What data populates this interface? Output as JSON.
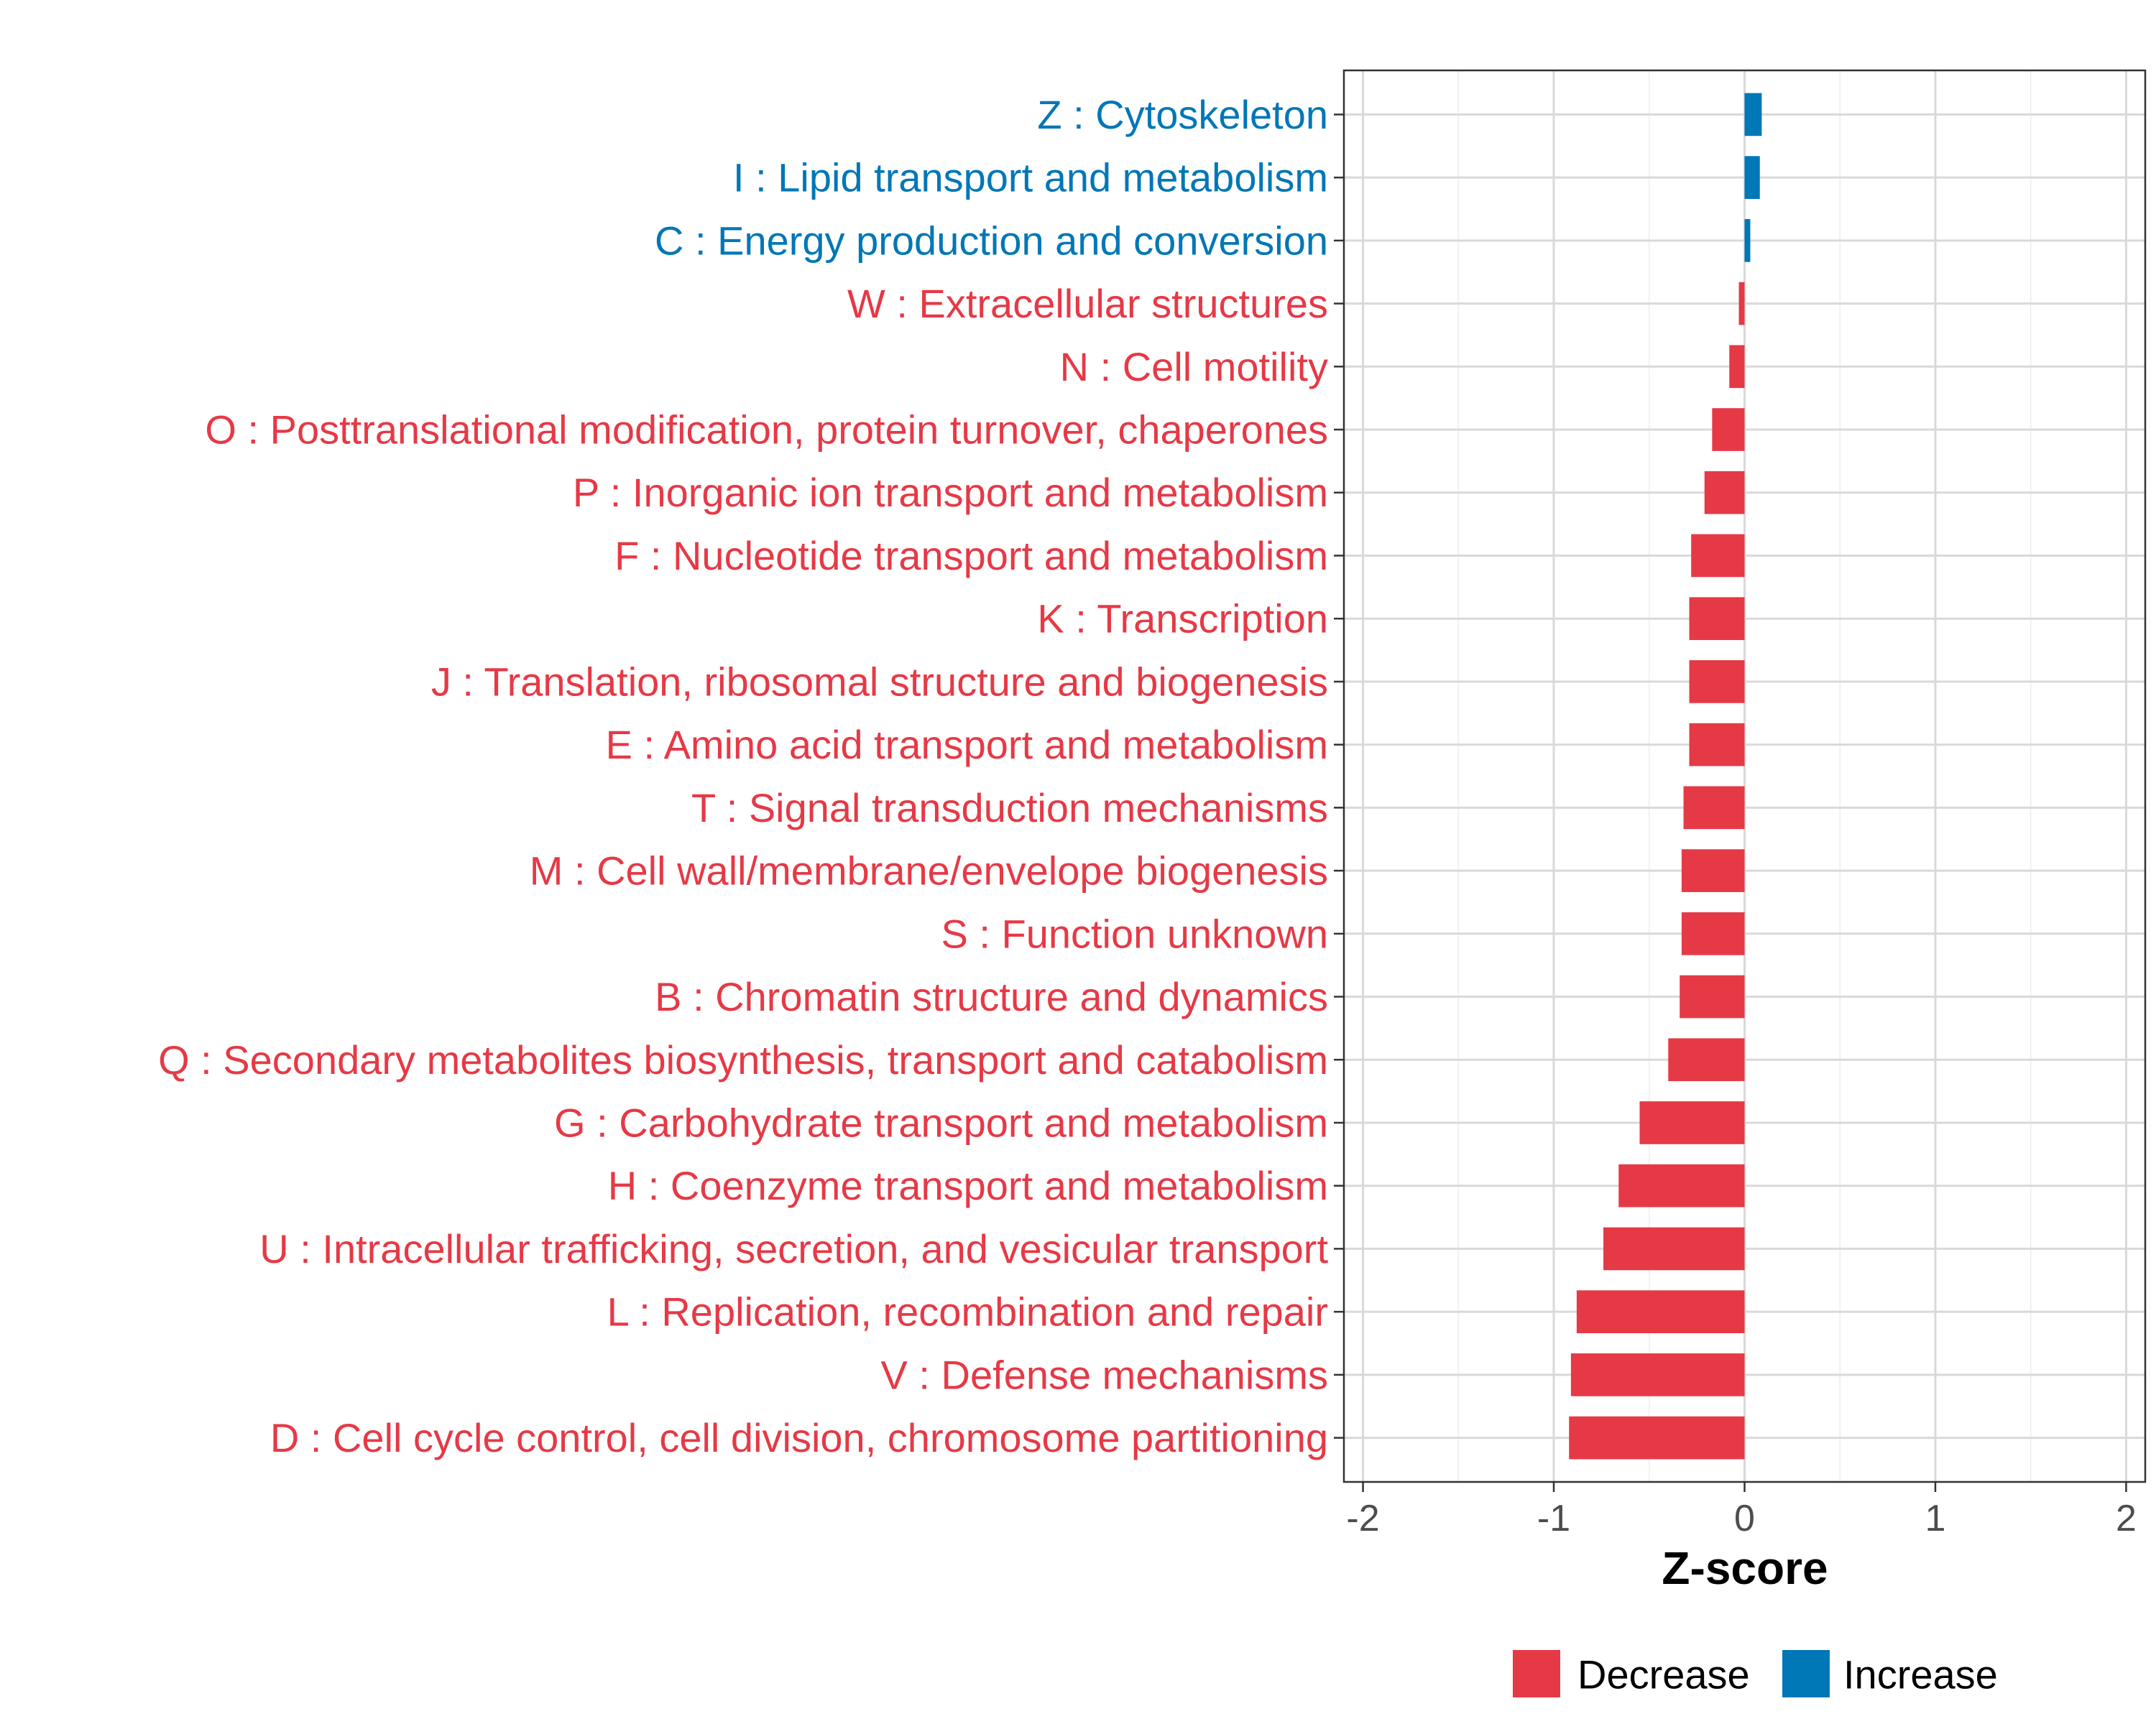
{
  "chart_data": {
    "type": "bar",
    "orientation": "horizontal",
    "xlabel": "Z-score",
    "xlim": [
      -2.1,
      2.1
    ],
    "xticks": [
      -2,
      -1,
      0,
      1,
      2
    ],
    "xtick_labels": [
      "-2",
      "-1",
      "0",
      "1",
      "2"
    ],
    "grid": true,
    "legend_position": "bottom",
    "colors": {
      "Decrease": "#e63946",
      "Increase": "#0077b6"
    },
    "legend": [
      {
        "label": "Decrease",
        "color": "#e63946"
      },
      {
        "label": "Increase",
        "color": "#0077b6"
      }
    ],
    "categories": [
      "Z : Cytoskeleton",
      "I : Lipid transport and metabolism",
      "C : Energy production and conversion",
      "W : Extracellular structures",
      "N : Cell motility",
      "O : Posttranslational modification, protein turnover, chaperones",
      "P : Inorganic ion transport and metabolism",
      "F : Nucleotide transport and metabolism",
      "K : Transcription",
      "J : Translation, ribosomal structure and biogenesis",
      "E : Amino acid transport and metabolism",
      "T : Signal transduction mechanisms",
      "M : Cell wall/membrane/envelope biogenesis",
      "S : Function unknown",
      "B : Chromatin structure and dynamics",
      "Q : Secondary metabolites biosynthesis, transport and catabolism",
      "G : Carbohydrate transport and metabolism",
      "H : Coenzyme transport and metabolism",
      "U : Intracellular trafficking, secretion, and vesicular transport",
      "L : Replication, recombination and repair",
      "V : Defense mechanisms",
      "D : Cell cycle control, cell division, chromosome partitioning"
    ],
    "values": [
      0.09,
      0.08,
      0.03,
      -0.03,
      -0.08,
      -0.17,
      -0.21,
      -0.28,
      -0.29,
      -0.29,
      -0.29,
      -0.32,
      -0.33,
      -0.33,
      -0.34,
      -0.4,
      -0.55,
      -0.66,
      -0.74,
      -0.88,
      -0.91,
      -0.92
    ],
    "groups": [
      "Increase",
      "Increase",
      "Increase",
      "Decrease",
      "Decrease",
      "Decrease",
      "Decrease",
      "Decrease",
      "Decrease",
      "Decrease",
      "Decrease",
      "Decrease",
      "Decrease",
      "Decrease",
      "Decrease",
      "Decrease",
      "Decrease",
      "Decrease",
      "Decrease",
      "Decrease",
      "Decrease",
      "Decrease"
    ]
  }
}
